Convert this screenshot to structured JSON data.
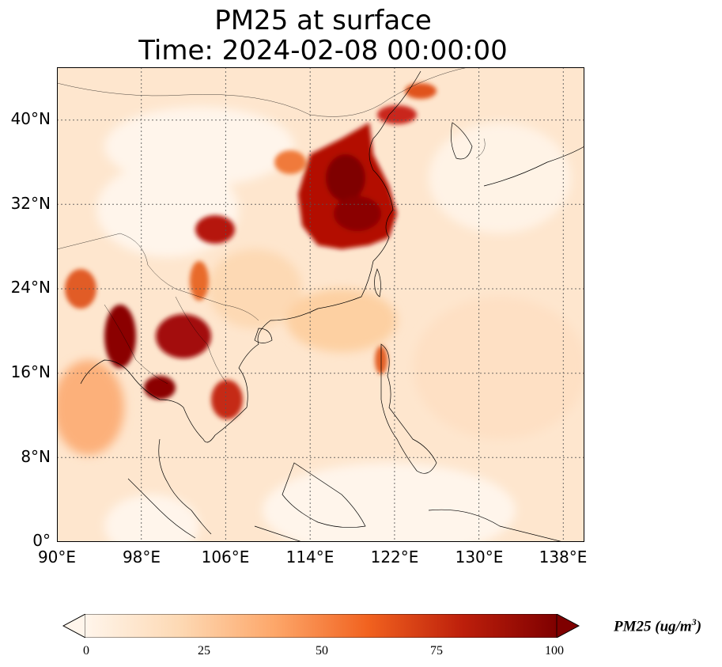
{
  "title_line1": "PM25 at surface",
  "title_line2": "Time: 2024-02-08 00:00:00",
  "lon_ticks": [
    {
      "value": 90,
      "label": "90°E"
    },
    {
      "value": 98,
      "label": "98°E"
    },
    {
      "value": 106,
      "label": "106°E"
    },
    {
      "value": 114,
      "label": "114°E"
    },
    {
      "value": 122,
      "label": "122°E"
    },
    {
      "value": 130,
      "label": "130°E"
    },
    {
      "value": 138,
      "label": "138°E"
    }
  ],
  "lat_ticks": [
    {
      "value": 0,
      "label": "0°"
    },
    {
      "value": 8,
      "label": "8°N"
    },
    {
      "value": 16,
      "label": "16°N"
    },
    {
      "value": 24,
      "label": "24°N"
    },
    {
      "value": 32,
      "label": "32°N"
    },
    {
      "value": 40,
      "label": "40°N"
    }
  ],
  "extent": {
    "lon_min": 90,
    "lon_max": 140,
    "lat_min": 0,
    "lat_max": 45
  },
  "colorbar": {
    "label_main": "PM25 (ug/m",
    "label_sup": "3",
    "label_end": ")",
    "min": 0,
    "max": 100,
    "ticks": [
      "0",
      "25",
      "50",
      "75",
      "100"
    ],
    "colors": [
      "#fff5eb",
      "#fdd9b4",
      "#fda76a",
      "#f1621f",
      "#bd1f0b",
      "#7f0000"
    ]
  }
}
